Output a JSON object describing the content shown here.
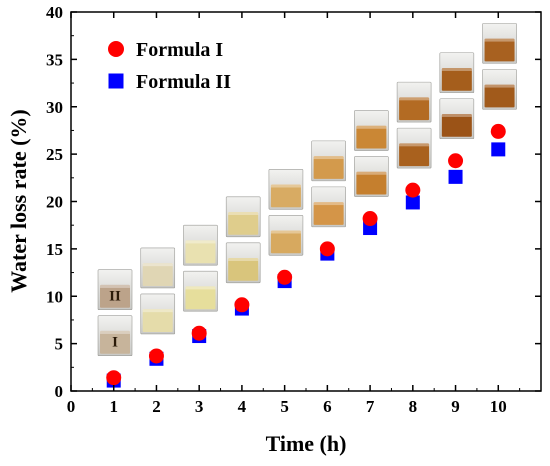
{
  "chart_data": {
    "type": "scatter",
    "title": "",
    "xlabel": "Time (h)",
    "ylabel": "Water loss rate (%)",
    "xlim": [
      0,
      11
    ],
    "ylim": [
      0,
      40
    ],
    "x_ticks": [
      "0",
      "1",
      "2",
      "3",
      "4",
      "5",
      "6",
      "7",
      "8",
      "9",
      "10"
    ],
    "y_ticks": [
      "0",
      "5",
      "10",
      "15",
      "20",
      "25",
      "30",
      "35",
      "40"
    ],
    "grid": false,
    "legend": "top-left",
    "series": [
      {
        "name": "Formula I",
        "marker": "circle",
        "color": "#ff0000",
        "x": [
          1,
          2,
          3,
          4,
          5,
          6,
          7,
          8,
          9,
          10
        ],
        "y": [
          1.4,
          3.7,
          6.1,
          9.1,
          12.0,
          15.0,
          18.2,
          21.2,
          24.3,
          27.4
        ]
      },
      {
        "name": "Formula II",
        "marker": "square",
        "color": "#0000ff",
        "x": [
          1,
          2,
          3,
          4,
          5,
          6,
          7,
          8,
          9,
          10
        ],
        "y": [
          1.1,
          3.4,
          5.8,
          8.7,
          11.6,
          14.5,
          17.2,
          19.9,
          22.6,
          25.5
        ]
      }
    ],
    "inset_photo_labels": [
      "II",
      "I"
    ]
  }
}
